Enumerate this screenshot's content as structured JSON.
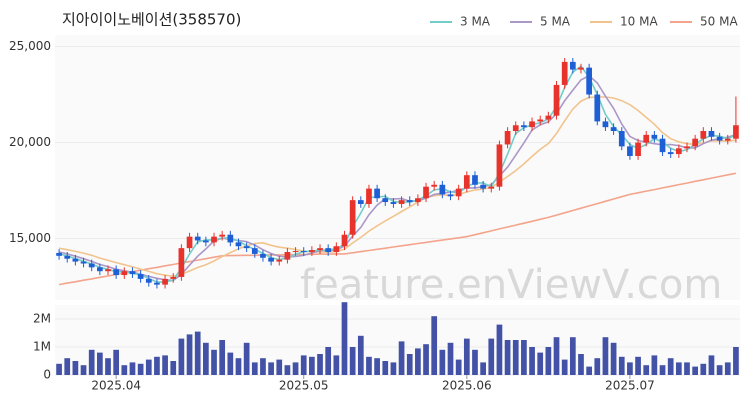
{
  "chart_data": {
    "type": "candlestick",
    "title": "지아이이노베이션(358570)",
    "watermark": "feature.enViewV.com",
    "categories": [
      null,
      null,
      null,
      null,
      null,
      null,
      null,
      "2025.04",
      null,
      null,
      null,
      null,
      null,
      null,
      null,
      null,
      null,
      null,
      null,
      null,
      null,
      null,
      null,
      null,
      null,
      null,
      null,
      null,
      null,
      null,
      "2025.05",
      null,
      null,
      null,
      null,
      null,
      null,
      null,
      null,
      null,
      null,
      null,
      null,
      null,
      null,
      null,
      null,
      null,
      null,
      null,
      "2025.06",
      null,
      null,
      null,
      null,
      null,
      null,
      null,
      null,
      null,
      null,
      null,
      null,
      null,
      null,
      null,
      null,
      null,
      null,
      null,
      "2025.07",
      null,
      null,
      null,
      null,
      null,
      null,
      null,
      null,
      null,
      null,
      null,
      null,
      null
    ],
    "open": [
      14250,
      14100,
      13950,
      13800,
      13700,
      13500,
      13300,
      13400,
      13100,
      13300,
      13150,
      12900,
      12700,
      12600,
      12900,
      13000,
      14500,
      15100,
      14900,
      14800,
      15100,
      15200,
      14800,
      14600,
      14500,
      14200,
      14000,
      13800,
      13900,
      14300,
      14350,
      14300,
      14400,
      14500,
      14300,
      14600,
      15200,
      17000,
      16800,
      17600,
      17100,
      16900,
      16800,
      17000,
      16900,
      17100,
      17700,
      17800,
      17300,
      17200,
      17600,
      18300,
      17800,
      17600,
      17700,
      19900,
      20600,
      20900,
      20800,
      21100,
      21200,
      21400,
      23000,
      24200,
      23800,
      23900,
      22500,
      21100,
      20800,
      20600,
      19800,
      19300,
      20000,
      20400,
      20200,
      19500,
      19400,
      19700,
      19800,
      20200,
      20600,
      20300,
      20100,
      20200
    ],
    "high": [
      14450,
      14300,
      14150,
      14000,
      13900,
      13700,
      13600,
      13600,
      13500,
      13500,
      13350,
      13100,
      12900,
      13100,
      13200,
      14700,
      15300,
      15300,
      15100,
      15300,
      15400,
      15400,
      15000,
      14800,
      14700,
      14400,
      14200,
      14100,
      14500,
      14550,
      14550,
      14600,
      14700,
      14700,
      14800,
      15400,
      17200,
      17200,
      17800,
      17800,
      17300,
      17100,
      17200,
      17200,
      17300,
      17900,
      18000,
      18000,
      17500,
      17800,
      18500,
      18500,
      18000,
      17900,
      20100,
      20800,
      21100,
      21100,
      21300,
      21400,
      21600,
      23200,
      24400,
      24400,
      24100,
      24100,
      22700,
      21300,
      21000,
      20800,
      20000,
      20200,
      20600,
      20600,
      20400,
      19700,
      19900,
      20000,
      20400,
      20800,
      20800,
      20500,
      20400,
      22400
    ],
    "low": [
      13900,
      13750,
      13600,
      13500,
      13300,
      13100,
      13100,
      12900,
      12900,
      12950,
      12700,
      12500,
      12400,
      12400,
      12700,
      12800,
      14300,
      14700,
      14600,
      14600,
      14900,
      14600,
      14400,
      14300,
      14000,
      13800,
      13600,
      13600,
      13700,
      14100,
      14100,
      14100,
      14200,
      14100,
      14100,
      14400,
      15000,
      16600,
      16600,
      16900,
      16700,
      16600,
      16600,
      16700,
      16700,
      16900,
      17500,
      17100,
      17000,
      17000,
      17400,
      17600,
      17400,
      17400,
      17500,
      19700,
      20400,
      20600,
      20600,
      20900,
      21000,
      21200,
      22800,
      23600,
      23600,
      22300,
      20900,
      20600,
      20400,
      19600,
      19100,
      19100,
      19800,
      20000,
      19300,
      19200,
      19200,
      19500,
      19600,
      20000,
      20100,
      19900,
      19900,
      20000
    ],
    "close": [
      14100,
      13950,
      13800,
      13700,
      13500,
      13300,
      13400,
      13100,
      13300,
      13150,
      12900,
      12700,
      12600,
      12900,
      13000,
      14500,
      15100,
      14900,
      14800,
      15100,
      15200,
      14800,
      14600,
      14500,
      14200,
      14000,
      13800,
      13900,
      14300,
      14350,
      14300,
      14400,
      14500,
      14300,
      14600,
      15200,
      17000,
      16800,
      17600,
      17100,
      16900,
      16800,
      17000,
      16900,
      17100,
      17700,
      17800,
      17300,
      17200,
      17600,
      18300,
      17800,
      17600,
      17700,
      19900,
      20600,
      20900,
      20800,
      21100,
      21200,
      21400,
      23000,
      24200,
      23800,
      23900,
      22500,
      21100,
      20800,
      20600,
      19800,
      19300,
      20000,
      20400,
      20200,
      19500,
      19400,
      19700,
      19800,
      20200,
      20600,
      20300,
      20100,
      20200,
      20900
    ],
    "up_color": "#e8332c",
    "down_color": "#1f5fd6",
    "ylim": [
      11800,
      25600
    ],
    "yticks": [
      {
        "value": 15000,
        "label": "15,000"
      },
      {
        "value": 20000,
        "label": "20,000"
      },
      {
        "value": 25000,
        "label": "25,000"
      }
    ],
    "grid": true,
    "series": [
      {
        "name": "3 MA",
        "color": "#72cdc9",
        "values": [
          14200,
          14100,
          13950,
          13820,
          13670,
          13500,
          13400,
          13270,
          13270,
          13180,
          13120,
          12920,
          12730,
          12730,
          12830,
          13470,
          14200,
          14830,
          14930,
          14930,
          15030,
          15030,
          14870,
          14630,
          14430,
          14230,
          14000,
          13900,
          14000,
          14180,
          14320,
          14350,
          14400,
          14400,
          14470,
          14700,
          15600,
          16330,
          17130,
          17170,
          17200,
          16930,
          16900,
          16900,
          17000,
          17230,
          17530,
          17600,
          17430,
          17370,
          17700,
          17900,
          17900,
          17700,
          18400,
          19400,
          20470,
          20770,
          20930,
          21030,
          21230,
          21870,
          22870,
          23670,
          23970,
          23400,
          22500,
          21470,
          20830,
          20400,
          19900,
          19700,
          19900,
          20200,
          20030,
          19700,
          19530,
          19630,
          19900,
          20200,
          20370,
          20330,
          20200,
          20400
        ]
      },
      {
        "name": "5 MA",
        "color": "#ab97c8",
        "values": [
          14300,
          14200,
          14080,
          13950,
          13810,
          13650,
          13540,
          13400,
          13320,
          13250,
          13150,
          13030,
          12930,
          12850,
          12820,
          13140,
          13620,
          14080,
          14460,
          14880,
          15020,
          14960,
          14900,
          14840,
          14660,
          14420,
          14220,
          14080,
          14040,
          14070,
          14130,
          14250,
          14370,
          14370,
          14420,
          14600,
          15120,
          15580,
          16240,
          16740,
          17080,
          17060,
          17080,
          16940,
          16980,
          17100,
          17300,
          17360,
          17420,
          17520,
          17640,
          17640,
          17700,
          17800,
          18260,
          18720,
          19340,
          19980,
          20660,
          20920,
          21080,
          21500,
          22180,
          22720,
          23260,
          23480,
          23100,
          22420,
          21780,
          20960,
          20320,
          20100,
          20020,
          19940,
          19880,
          19900,
          19840,
          19720,
          19720,
          19940,
          20120,
          20200,
          20280,
          20420
        ]
      },
      {
        "name": "10 MA",
        "color": "#f1c48e",
        "values": [
          14500,
          14420,
          14330,
          14240,
          14130,
          13980,
          13870,
          13750,
          13640,
          13530,
          13410,
          13290,
          13170,
          13090,
          13040,
          13140,
          13310,
          13490,
          13640,
          13830,
          14060,
          14270,
          14460,
          14620,
          14740,
          14780,
          14650,
          14550,
          14500,
          14430,
          14340,
          14300,
          14310,
          14290,
          14330,
          14450,
          14770,
          15060,
          15390,
          15660,
          15920,
          16160,
          16410,
          16650,
          16900,
          17150,
          17230,
          17280,
          17240,
          17290,
          17430,
          17530,
          17580,
          17660,
          17940,
          18230,
          18540,
          18890,
          19280,
          19640,
          19950,
          20470,
          21130,
          21740,
          22160,
          22350,
          22370,
          22370,
          22320,
          22180,
          21970,
          21670,
          21310,
          20950,
          20510,
          20200,
          20040,
          19940,
          19900,
          19980,
          20080,
          20090,
          20070,
          20120
        ]
      },
      {
        "name": "50 MA",
        "color": "#f4a48c",
        "values": [
          12600,
          12680,
          12750,
          12830,
          12900,
          12980,
          13050,
          13130,
          13200,
          13280,
          13350,
          13430,
          13500,
          13580,
          13650,
          13730,
          13800,
          13880,
          13950,
          14030,
          14100,
          14110,
          14120,
          14130,
          14130,
          14140,
          14150,
          14150,
          14160,
          14170,
          14170,
          14180,
          14190,
          14190,
          14200,
          14200,
          14260,
          14320,
          14380,
          14440,
          14500,
          14560,
          14620,
          14680,
          14740,
          14800,
          14860,
          14920,
          14980,
          15040,
          15100,
          15200,
          15300,
          15400,
          15500,
          15600,
          15700,
          15800,
          15900,
          16000,
          16100,
          16220,
          16340,
          16460,
          16580,
          16700,
          16820,
          16940,
          17060,
          17180,
          17300,
          17380,
          17470,
          17550,
          17640,
          17720,
          17810,
          17890,
          17980,
          18060,
          18150,
          18230,
          18320,
          18400
        ]
      }
    ],
    "volume": {
      "color": "#4352a6",
      "values": [
        400000,
        600000,
        500000,
        350000,
        900000,
        800000,
        600000,
        900000,
        350000,
        450000,
        400000,
        550000,
        650000,
        700000,
        500000,
        1300000,
        1450000,
        1550000,
        1150000,
        900000,
        1250000,
        800000,
        600000,
        1150000,
        450000,
        600000,
        450000,
        550000,
        350000,
        450000,
        700000,
        650000,
        750000,
        1000000,
        700000,
        2600000,
        1000000,
        1400000,
        650000,
        600000,
        500000,
        450000,
        1200000,
        750000,
        950000,
        1100000,
        2100000,
        900000,
        1150000,
        550000,
        1300000,
        900000,
        450000,
        1300000,
        1800000,
        1250000,
        1250000,
        1250000,
        1000000,
        800000,
        1000000,
        1350000,
        550000,
        1350000,
        750000,
        300000,
        600000,
        1350000,
        1150000,
        650000,
        450000,
        650000,
        350000,
        700000,
        350000,
        600000,
        450000,
        450000,
        300000,
        400000,
        700000,
        350000,
        450000,
        1000000
      ],
      "ylim": [
        0,
        2500000
      ],
      "yticks": [
        0,
        {
          "value": 1000000,
          "label": "1M"
        },
        {
          "value": 2000000,
          "label": "2M"
        }
      ]
    }
  }
}
